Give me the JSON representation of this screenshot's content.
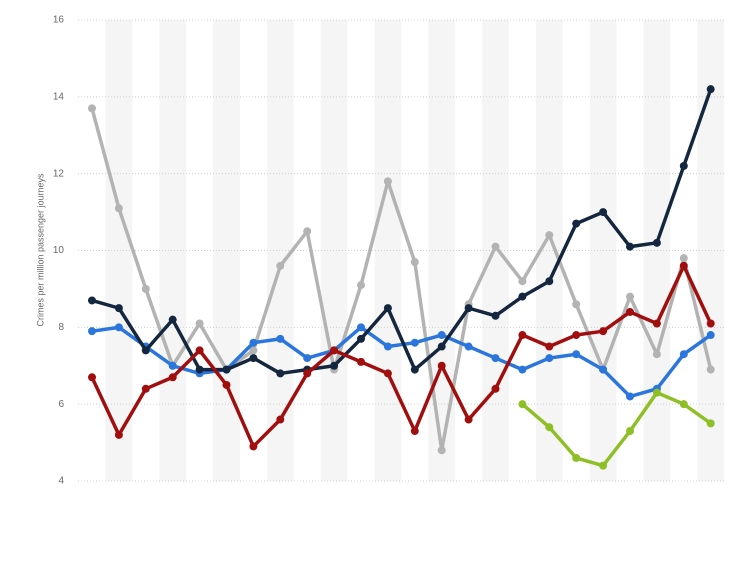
{
  "chart_data": {
    "type": "line",
    "y_label": "Crimes per million passenger journeys",
    "categories": [
      null,
      null,
      null,
      null,
      null,
      null,
      null,
      null,
      null,
      null,
      null,
      null,
      null,
      null,
      null,
      null,
      null,
      null,
      null,
      null,
      null,
      null,
      null,
      null
    ],
    "ylim": [
      4,
      16
    ],
    "yticks": [
      4,
      6,
      8,
      10,
      12,
      14,
      16
    ],
    "grid": true,
    "series": [
      {
        "color": "#b3b3b3",
        "values": [
          13.7,
          11.1,
          9.0,
          7.0,
          8.1,
          6.9,
          7.4,
          9.6,
          10.5,
          6.9,
          9.1,
          11.8,
          9.7,
          4.8,
          8.6,
          10.1,
          9.2,
          10.4,
          8.6,
          6.9,
          8.8,
          7.3,
          9.8,
          6.9
        ]
      },
      {
        "color": "#2a76dd",
        "values": [
          7.9,
          8.0,
          7.5,
          7.0,
          6.8,
          6.9,
          7.6,
          7.7,
          7.2,
          7.4,
          8.0,
          7.5,
          7.6,
          7.8,
          7.5,
          7.2,
          6.9,
          7.2,
          7.3,
          6.9,
          6.2,
          6.4,
          7.3,
          7.8
        ]
      },
      {
        "color": "#14273f",
        "values": [
          8.7,
          8.5,
          7.4,
          8.2,
          6.9,
          6.9,
          7.2,
          6.8,
          6.9,
          7.0,
          7.7,
          8.5,
          6.9,
          7.5,
          8.5,
          8.3,
          8.8,
          9.2,
          10.7,
          11.0,
          10.1,
          10.2,
          12.2,
          14.2
        ]
      },
      {
        "color": "#a10e0e",
        "values": [
          6.7,
          5.2,
          6.4,
          6.7,
          7.4,
          6.5,
          4.9,
          5.6,
          6.8,
          7.4,
          7.1,
          6.8,
          5.3,
          7.0,
          5.6,
          6.4,
          7.8,
          7.5,
          7.8,
          7.9,
          8.4,
          8.1,
          9.6,
          8.1
        ]
      },
      {
        "color": "#8fbf26",
        "values": [
          null,
          null,
          null,
          null,
          null,
          null,
          null,
          null,
          null,
          null,
          null,
          null,
          null,
          null,
          null,
          null,
          6.0,
          5.4,
          4.6,
          4.4,
          5.3,
          6.3,
          6.0,
          5.5
        ]
      }
    ]
  }
}
